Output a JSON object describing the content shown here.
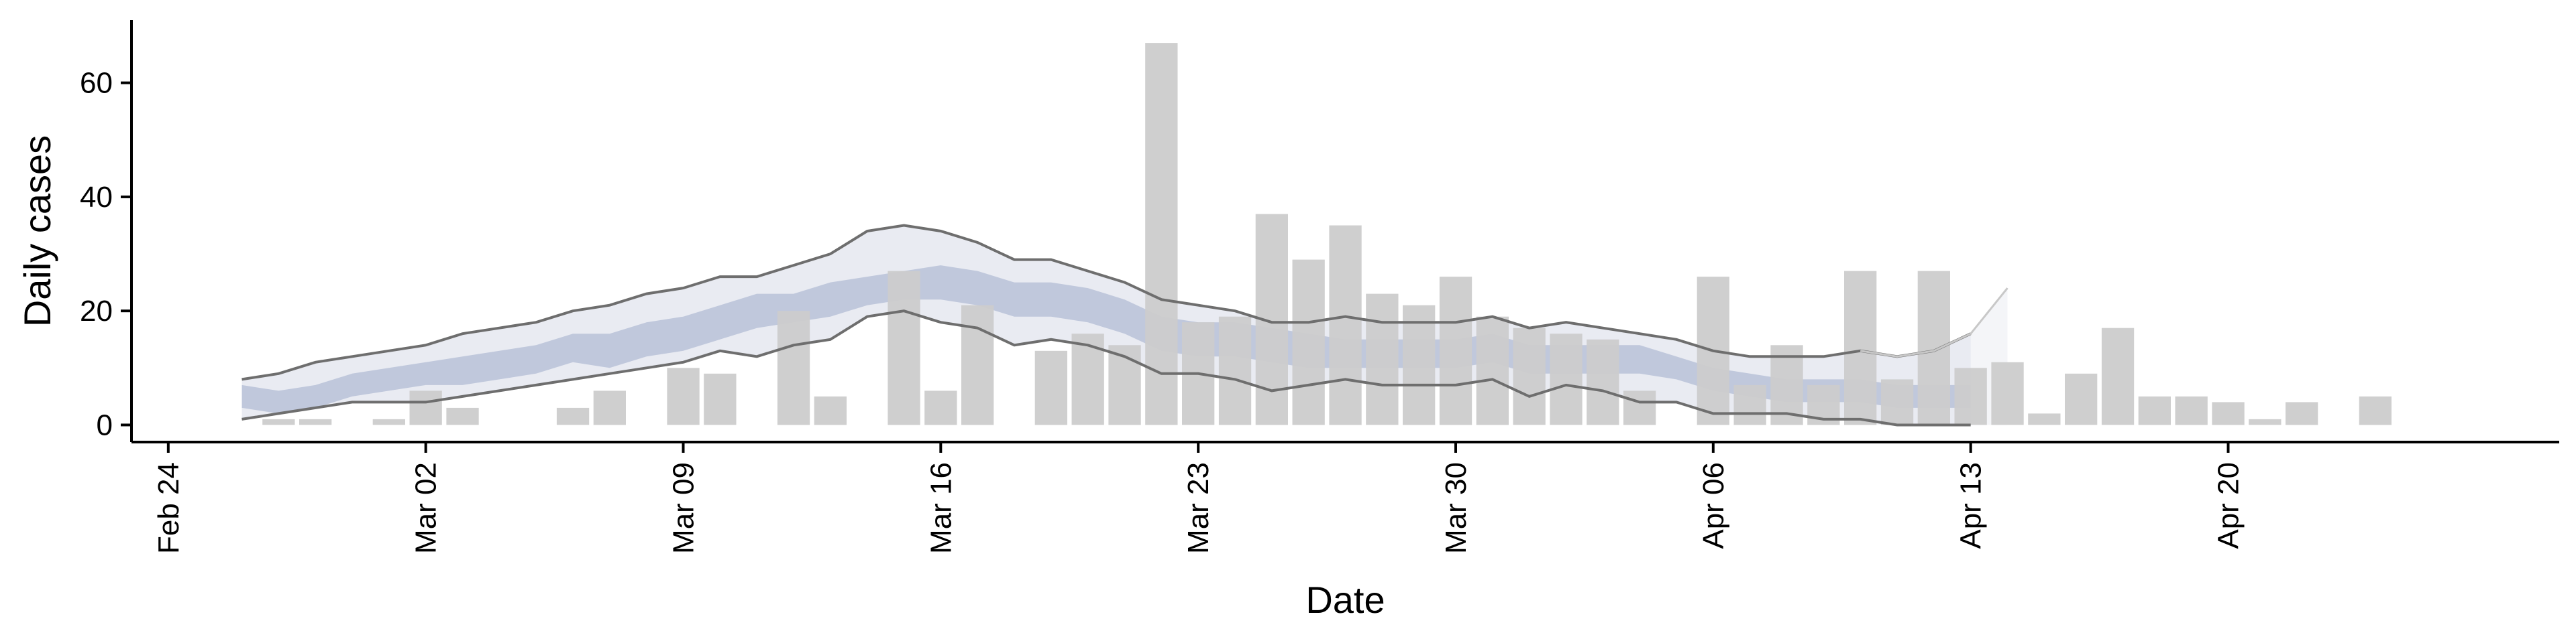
{
  "chart_data": {
    "type": "bar",
    "xlabel": "Date",
    "ylabel": "Daily cases",
    "x_range": [
      "2020-02-23",
      "2020-04-29"
    ],
    "ylim": [
      -3,
      71
    ],
    "x_ticks": [
      {
        "date": "2020-02-24",
        "label": "Feb 24"
      },
      {
        "date": "2020-03-02",
        "label": "Mar 02"
      },
      {
        "date": "2020-03-09",
        "label": "Mar 09"
      },
      {
        "date": "2020-03-16",
        "label": "Mar 16"
      },
      {
        "date": "2020-03-23",
        "label": "Mar 23"
      },
      {
        "date": "2020-03-30",
        "label": "Mar 30"
      },
      {
        "date": "2020-04-06",
        "label": "Apr 06"
      },
      {
        "date": "2020-04-13",
        "label": "Apr 13"
      },
      {
        "date": "2020-04-20",
        "label": "Apr 20"
      }
    ],
    "y_ticks": [
      0,
      20,
      40,
      60
    ],
    "grid": false,
    "colors": {
      "bars": "#cccccc",
      "outer_band": "#e9ebf2",
      "inner_band": "#b9c2d8",
      "bound_lines": "#6e6e6e",
      "axis": "#000000"
    },
    "bars": {
      "name": "",
      "x": [
        "2020-02-27",
        "2020-02-28",
        "2020-03-01",
        "2020-03-02",
        "2020-03-03",
        "2020-03-06",
        "2020-03-07",
        "2020-03-09",
        "2020-03-10",
        "2020-03-12",
        "2020-03-13",
        "2020-03-15",
        "2020-03-16",
        "2020-03-17",
        "2020-03-19",
        "2020-03-20",
        "2020-03-21",
        "2020-03-22",
        "2020-03-23",
        "2020-03-24",
        "2020-03-25",
        "2020-03-26",
        "2020-03-27",
        "2020-03-28",
        "2020-03-29",
        "2020-03-30",
        "2020-03-31",
        "2020-04-01",
        "2020-04-02",
        "2020-04-03",
        "2020-04-04",
        "2020-04-06",
        "2020-04-07",
        "2020-04-08",
        "2020-04-09",
        "2020-04-10",
        "2020-04-11",
        "2020-04-12",
        "2020-04-13",
        "2020-04-14",
        "2020-04-15",
        "2020-04-16",
        "2020-04-17",
        "2020-04-18",
        "2020-04-19",
        "2020-04-20",
        "2020-04-21",
        "2020-04-22",
        "2020-04-24"
      ],
      "values": [
        1,
        1,
        1,
        6,
        3,
        3,
        6,
        10,
        9,
        20,
        5,
        27,
        6,
        21,
        13,
        16,
        14,
        67,
        18,
        19,
        37,
        29,
        35,
        23,
        21,
        26,
        19,
        17,
        16,
        15,
        6,
        26,
        7,
        14,
        7,
        27,
        8,
        27,
        10,
        11,
        2,
        9,
        17,
        5,
        5,
        4,
        1,
        4,
        5
      ]
    },
    "outer_band": {
      "x": [
        "2020-02-26",
        "2020-02-27",
        "2020-02-28",
        "2020-02-29",
        "2020-03-01",
        "2020-03-02",
        "2020-03-03",
        "2020-03-04",
        "2020-03-05",
        "2020-03-06",
        "2020-03-07",
        "2020-03-08",
        "2020-03-09",
        "2020-03-10",
        "2020-03-11",
        "2020-03-12",
        "2020-03-13",
        "2020-03-14",
        "2020-03-15",
        "2020-03-16",
        "2020-03-17",
        "2020-03-18",
        "2020-03-19",
        "2020-03-20",
        "2020-03-21",
        "2020-03-22",
        "2020-03-23",
        "2020-03-24",
        "2020-03-25",
        "2020-03-26",
        "2020-03-27",
        "2020-03-28",
        "2020-03-29",
        "2020-03-30",
        "2020-03-31",
        "2020-04-01",
        "2020-04-02",
        "2020-04-03",
        "2020-04-04",
        "2020-04-05",
        "2020-04-06",
        "2020-04-07",
        "2020-04-08",
        "2020-04-09",
        "2020-04-10",
        "2020-04-11",
        "2020-04-12",
        "2020-04-13"
      ],
      "lower": [
        1,
        2,
        3,
        4,
        4,
        4,
        5,
        6,
        7,
        8,
        9,
        10,
        11,
        13,
        12,
        14,
        15,
        19,
        20,
        18,
        17,
        14,
        15,
        14,
        12,
        9,
        9,
        8,
        6,
        7,
        8,
        7,
        7,
        7,
        8,
        5,
        7,
        6,
        4,
        4,
        2,
        2,
        2,
        1,
        1,
        0,
        0,
        0
      ],
      "upper": [
        8,
        9,
        11,
        12,
        13,
        14,
        16,
        17,
        18,
        20,
        21,
        23,
        24,
        26,
        26,
        28,
        30,
        34,
        35,
        34,
        32,
        29,
        29,
        27,
        25,
        22,
        21,
        20,
        18,
        18,
        19,
        18,
        18,
        18,
        19,
        17,
        18,
        17,
        16,
        15,
        13,
        12,
        12,
        12,
        13,
        12,
        13,
        16
      ]
    },
    "inner_band": {
      "x": [
        "2020-02-26",
        "2020-02-27",
        "2020-02-28",
        "2020-02-29",
        "2020-03-01",
        "2020-03-02",
        "2020-03-03",
        "2020-03-04",
        "2020-03-05",
        "2020-03-06",
        "2020-03-07",
        "2020-03-08",
        "2020-03-09",
        "2020-03-10",
        "2020-03-11",
        "2020-03-12",
        "2020-03-13",
        "2020-03-14",
        "2020-03-15",
        "2020-03-16",
        "2020-03-17",
        "2020-03-18",
        "2020-03-19",
        "2020-03-20",
        "2020-03-21",
        "2020-03-22",
        "2020-03-23",
        "2020-03-24",
        "2020-03-25",
        "2020-03-26",
        "2020-03-27",
        "2020-03-28",
        "2020-03-29",
        "2020-03-30",
        "2020-03-31",
        "2020-04-01",
        "2020-04-02",
        "2020-04-03",
        "2020-04-04",
        "2020-04-05",
        "2020-04-06",
        "2020-04-07",
        "2020-04-08",
        "2020-04-09",
        "2020-04-10",
        "2020-04-11",
        "2020-04-12",
        "2020-04-13"
      ],
      "lower": [
        3,
        2,
        3,
        5,
        6,
        7,
        7,
        8,
        9,
        11,
        10,
        12,
        13,
        15,
        17,
        18,
        19,
        21,
        22,
        22,
        21,
        19,
        19,
        18,
        16,
        13,
        12,
        12,
        11,
        10,
        10,
        10,
        10,
        10,
        11,
        9,
        9,
        9,
        9,
        8,
        6,
        5,
        4,
        4,
        4,
        3,
        3,
        3
      ],
      "upper": [
        7,
        6,
        7,
        9,
        10,
        11,
        12,
        13,
        14,
        16,
        16,
        18,
        19,
        21,
        23,
        23,
        25,
        26,
        27,
        28,
        27,
        25,
        25,
        24,
        22,
        19,
        18,
        18,
        17,
        16,
        15,
        15,
        15,
        15,
        16,
        14,
        14,
        14,
        14,
        12,
        10,
        9,
        8,
        8,
        8,
        7,
        7,
        7
      ]
    },
    "fade_band": {
      "x": [
        "2020-04-10",
        "2020-04-11",
        "2020-04-12",
        "2020-04-13",
        "2020-04-14"
      ],
      "lower": [
        0,
        0,
        0,
        0,
        0
      ],
      "upper": [
        13,
        12,
        13,
        16,
        24
      ]
    }
  }
}
